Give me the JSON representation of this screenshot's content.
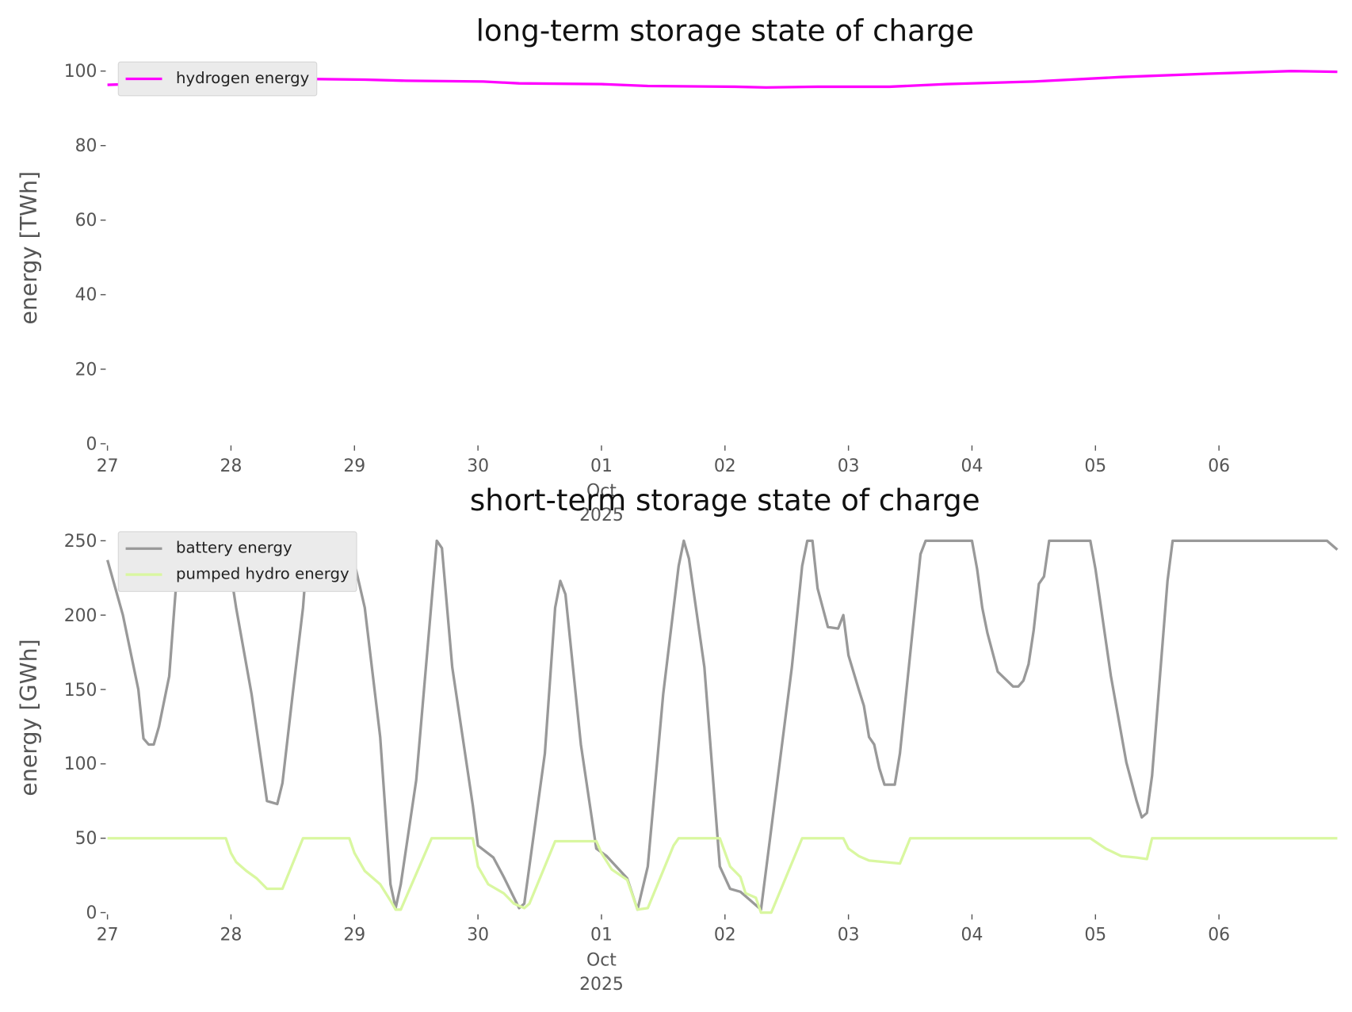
{
  "chart_data": [
    {
      "type": "line",
      "title": "long-term storage state of charge",
      "ylabel": "energy [TWh]",
      "xlim": [
        "2025-09-27T00:00",
        "2025-10-07T00:00"
      ],
      "xticks": [
        {
          "value": "2025-09-27",
          "label": "27"
        },
        {
          "value": "2025-09-28",
          "label": "28"
        },
        {
          "value": "2025-09-29",
          "label": "29"
        },
        {
          "value": "2025-09-30",
          "label": "30"
        },
        {
          "value": "2025-10-01",
          "label": "01\nOct\n2025"
        },
        {
          "value": "2025-10-02",
          "label": "02"
        },
        {
          "value": "2025-10-03",
          "label": "03"
        },
        {
          "value": "2025-10-04",
          "label": "04"
        },
        {
          "value": "2025-10-05",
          "label": "05"
        },
        {
          "value": "2025-10-06",
          "label": "06"
        }
      ],
      "ylim": [
        0,
        105
      ],
      "yticks": [
        0,
        20,
        40,
        60,
        80,
        100
      ],
      "grid": false,
      "legend": "upper left",
      "series": [
        {
          "name": "hydrogen energy",
          "color": "#ff00ff",
          "x": [
            "2025-09-27T00:00",
            "2025-09-28T06:00",
            "2025-09-28T14:00",
            "2025-09-29T02:00",
            "2025-09-29T10:00",
            "2025-09-30T01:00",
            "2025-09-30T08:00",
            "2025-10-01T00:00",
            "2025-10-01T09:00",
            "2025-10-02T02:00",
            "2025-10-02T08:00",
            "2025-10-02T18:00",
            "2025-10-03T08:00",
            "2025-10-03T19:00",
            "2025-10-04T12:00",
            "2025-10-05T05:00",
            "2025-10-05T22:00",
            "2025-10-06T14:00",
            "2025-10-06T23:00"
          ],
          "values": [
            96.3,
            97.7,
            97.9,
            97.7,
            97.4,
            97.2,
            96.7,
            96.5,
            96,
            95.8,
            95.6,
            95.8,
            95.8,
            96.5,
            97.2,
            98.4,
            99.3,
            100,
            99.8
          ]
        }
      ]
    },
    {
      "type": "line",
      "title": "short-term storage state of charge",
      "ylabel": "energy [GWh]",
      "xlim": [
        "2025-09-27T00:00",
        "2025-10-07T00:00"
      ],
      "xticks": [
        {
          "value": "2025-09-27",
          "label": "27"
        },
        {
          "value": "2025-09-28",
          "label": "28"
        },
        {
          "value": "2025-09-29",
          "label": "29"
        },
        {
          "value": "2025-09-30",
          "label": "30"
        },
        {
          "value": "2025-10-01",
          "label": "01\nOct\n2025"
        },
        {
          "value": "2025-10-02",
          "label": "02"
        },
        {
          "value": "2025-10-03",
          "label": "03"
        },
        {
          "value": "2025-10-04",
          "label": "04"
        },
        {
          "value": "2025-10-05",
          "label": "05"
        },
        {
          "value": "2025-10-06",
          "label": "06"
        }
      ],
      "ylim": [
        0,
        262.5
      ],
      "yticks": [
        0,
        50,
        100,
        150,
        200,
        250
      ],
      "grid": false,
      "legend": "upper left",
      "series": [
        {
          "name": "battery energy",
          "color": "#999999",
          "x": [
            "2025-09-27T00:00",
            "2025-09-27T03:00",
            "2025-09-27T06:00",
            "2025-09-27T07:00",
            "2025-09-27T08:00",
            "2025-09-27T09:00",
            "2025-09-27T10:00",
            "2025-09-27T12:00",
            "2025-09-27T13:00",
            "2025-09-27T14:00",
            "2025-09-27T23:00",
            "2025-09-28T01:00",
            "2025-09-28T04:00",
            "2025-09-28T07:00",
            "2025-09-28T09:00",
            "2025-09-28T10:00",
            "2025-09-28T12:00",
            "2025-09-28T14:00",
            "2025-09-28T15:00",
            "2025-09-28T23:00",
            "2025-09-29T02:00",
            "2025-09-29T05:00",
            "2025-09-29T07:00",
            "2025-09-29T08:00",
            "2025-09-29T09:00",
            "2025-09-29T12:00",
            "2025-09-29T16:00",
            "2025-09-29T17:00",
            "2025-09-29T19:00",
            "2025-09-29T23:00",
            "2025-09-30T00:00",
            "2025-09-30T03:00",
            "2025-09-30T05:00",
            "2025-09-30T08:00",
            "2025-09-30T09:00",
            "2025-09-30T13:00",
            "2025-09-30T15:00",
            "2025-09-30T16:00",
            "2025-09-30T17:00",
            "2025-09-30T20:00",
            "2025-09-30T23:00",
            "2025-10-01T01:00",
            "2025-10-01T05:00",
            "2025-10-01T07:00",
            "2025-10-01T09:00",
            "2025-10-01T12:00",
            "2025-10-01T15:00",
            "2025-10-01T16:00",
            "2025-10-01T17:00",
            "2025-10-01T20:00",
            "2025-10-01T23:00",
            "2025-10-02T01:00",
            "2025-10-02T03:00",
            "2025-10-02T05:00",
            "2025-10-02T07:00",
            "2025-10-02T13:00",
            "2025-10-02T15:00",
            "2025-10-02T16:00",
            "2025-10-02T17:00",
            "2025-10-02T18:00",
            "2025-10-02T20:00",
            "2025-10-02T22:00",
            "2025-10-02T23:00",
            "2025-10-03T00:00",
            "2025-10-03T02:00",
            "2025-10-03T03:00",
            "2025-10-03T04:00",
            "2025-10-03T05:00",
            "2025-10-03T06:00",
            "2025-10-03T07:00",
            "2025-10-03T09:00",
            "2025-10-03T10:00",
            "2025-10-03T14:00",
            "2025-10-03T15:00",
            "2025-10-04T00:00",
            "2025-10-04T01:00",
            "2025-10-04T02:00",
            "2025-10-04T03:00",
            "2025-10-04T05:00",
            "2025-10-04T08:00",
            "2025-10-04T09:00",
            "2025-10-04T10:00",
            "2025-10-04T11:00",
            "2025-10-04T12:00",
            "2025-10-04T13:00",
            "2025-10-04T14:00",
            "2025-10-04T15:00",
            "2025-10-04T23:00",
            "2025-10-05T00:00",
            "2025-10-05T03:00",
            "2025-10-05T06:00",
            "2025-10-05T08:00",
            "2025-10-05T09:00",
            "2025-10-05T10:00",
            "2025-10-05T11:00",
            "2025-10-05T14:00",
            "2025-10-05T15:00",
            "2025-10-06T21:00",
            "2025-10-06T23:00"
          ],
          "values": [
            237,
            200,
            150,
            117,
            113,
            113,
            125,
            159,
            205,
            250,
            250,
            205,
            147,
            75,
            73,
            87,
            147,
            205,
            250,
            250,
            205,
            118,
            19,
            3,
            19,
            89,
            250,
            245,
            165,
            72,
            45,
            37,
            24,
            3,
            6,
            107,
            205,
            223,
            214,
            113,
            43,
            38,
            23,
            2,
            31,
            147,
            233,
            250,
            238,
            165,
            31,
            16,
            14,
            8,
            2,
            165,
            233,
            250,
            250,
            218,
            192,
            191,
            200,
            173,
            150,
            139,
            118,
            113,
            97,
            86,
            86,
            107,
            241,
            250,
            250,
            231,
            205,
            188,
            162,
            152,
            152,
            156,
            167,
            190,
            221,
            226,
            250,
            250,
            231,
            159,
            101,
            75,
            64,
            67,
            92,
            223,
            250,
            250,
            244
          ]
        },
        {
          "name": "pumped hydro energy",
          "color": "#d9f7a0",
          "x": [
            "2025-09-27T00:00",
            "2025-09-27T23:00",
            "2025-09-28T00:00",
            "2025-09-28T01:00",
            "2025-09-28T03:00",
            "2025-09-28T05:00",
            "2025-09-28T07:00",
            "2025-09-28T10:00",
            "2025-09-28T14:00",
            "2025-09-28T23:00",
            "2025-09-29T00:00",
            "2025-09-29T02:00",
            "2025-09-29T05:00",
            "2025-09-29T07:00",
            "2025-09-29T08:00",
            "2025-09-29T09:00",
            "2025-09-29T15:00",
            "2025-09-29T23:00",
            "2025-09-30T00:00",
            "2025-09-30T02:00",
            "2025-09-30T05:00",
            "2025-09-30T07:00",
            "2025-09-30T09:00",
            "2025-09-30T10:00",
            "2025-09-30T15:00",
            "2025-09-30T23:00",
            "2025-10-01T00:00",
            "2025-10-01T02:00",
            "2025-10-01T05:00",
            "2025-10-01T07:00",
            "2025-10-01T09:00",
            "2025-10-01T14:00",
            "2025-10-01T15:00",
            "2025-10-01T23:00",
            "2025-10-02T01:00",
            "2025-10-02T03:00",
            "2025-10-02T04:00",
            "2025-10-02T06:00",
            "2025-10-02T07:00",
            "2025-10-02T09:00",
            "2025-10-02T15:00",
            "2025-10-02T23:00",
            "2025-10-03T00:00",
            "2025-10-03T02:00",
            "2025-10-03T04:00",
            "2025-10-03T07:00",
            "2025-10-03T10:00",
            "2025-10-03T12:00",
            "2025-10-04T23:00",
            "2025-10-05T02:00",
            "2025-10-05T05:00",
            "2025-10-05T08:00",
            "2025-10-05T10:00",
            "2025-10-05T11:00",
            "2025-10-06T23:00"
          ],
          "values": [
            50,
            50,
            40,
            34,
            28,
            23,
            16,
            16,
            50,
            50,
            40,
            28,
            19,
            8,
            2,
            2,
            50,
            50,
            31,
            19,
            13,
            6,
            3,
            6,
            48,
            48,
            40,
            29,
            22,
            2,
            3,
            45,
            50,
            50,
            31,
            24,
            13,
            10,
            0,
            0,
            50,
            50,
            43,
            38,
            35,
            34,
            33,
            50,
            50,
            43,
            38,
            37,
            36,
            50,
            50
          ]
        }
      ]
    }
  ]
}
